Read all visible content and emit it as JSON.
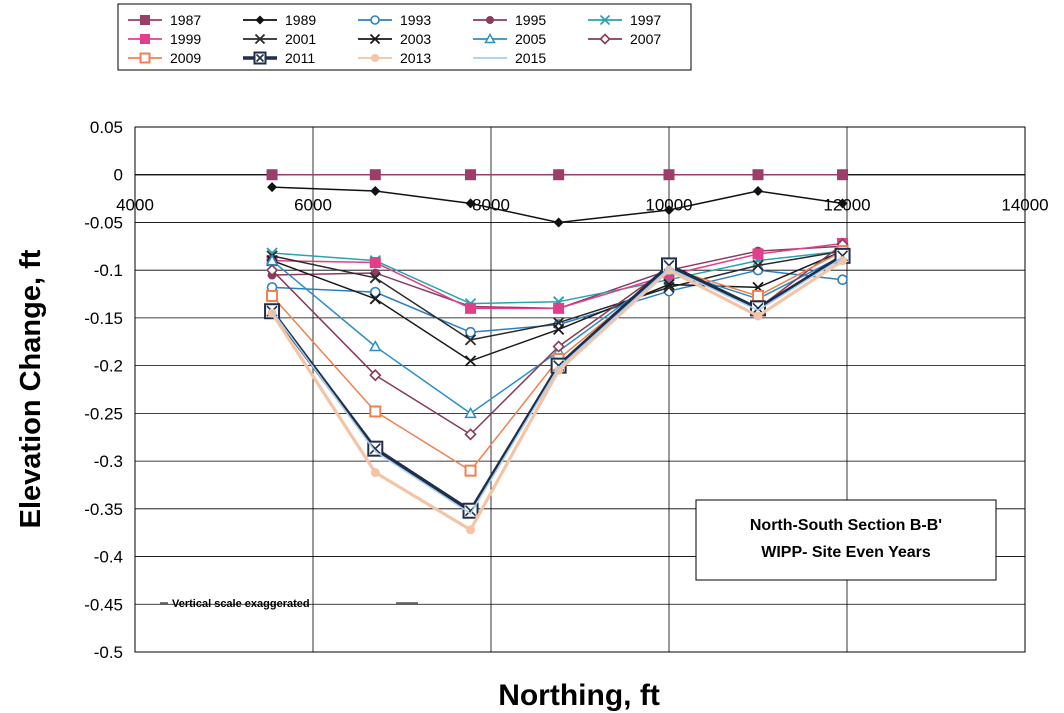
{
  "chart_data": {
    "type": "line",
    "xlabel": "Northing, ft",
    "ylabel": "Elevation Change, ft",
    "xlim": [
      4000,
      14000
    ],
    "ylim": [
      -0.5,
      0.05
    ],
    "x_ticks": [
      4000,
      6000,
      8000,
      10000,
      12000,
      14000
    ],
    "y_ticks": [
      0.05,
      0,
      -0.05,
      -0.1,
      -0.15,
      -0.2,
      -0.25,
      -0.3,
      -0.35,
      -0.4,
      -0.45,
      -0.5
    ],
    "grid": true,
    "legend_position": "top-left, above plot",
    "annotation": [
      "North-South Section B-B'",
      "WIPP- Site Even Years"
    ],
    "note": "Vertical scale exaggerated",
    "x": [
      5540,
      6700,
      7770,
      8760,
      10000,
      11000,
      11950
    ],
    "series": [
      {
        "name": "1987",
        "color": "#9c3d6a",
        "marker": "square-filled",
        "values": [
          0,
          0,
          0,
          0,
          0,
          0,
          0
        ]
      },
      {
        "name": "1989",
        "color": "#111111",
        "marker": "diamond-filled",
        "values": [
          -0.013,
          -0.017,
          -0.03,
          -0.05,
          -0.037,
          -0.017,
          -0.03
        ]
      },
      {
        "name": "1993",
        "color": "#2e7fc0",
        "marker": "circle-open",
        "values": [
          -0.118,
          -0.123,
          -0.165,
          -0.157,
          -0.122,
          -0.1,
          -0.11
        ]
      },
      {
        "name": "1995",
        "color": "#8b3a62",
        "marker": "circle-filled",
        "values": [
          -0.105,
          -0.103,
          -0.138,
          -0.14,
          -0.1,
          -0.08,
          -0.075
        ]
      },
      {
        "name": "1997",
        "color": "#2aa3b0",
        "marker": "x",
        "values": [
          -0.082,
          -0.09,
          -0.135,
          -0.133,
          -0.11,
          -0.09,
          -0.08
        ]
      },
      {
        "name": "1999",
        "color": "#e0408a",
        "marker": "square-filled",
        "values": [
          -0.09,
          -0.092,
          -0.14,
          -0.14,
          -0.105,
          -0.083,
          -0.072
        ]
      },
      {
        "name": "2001",
        "color": "#2a2a2a",
        "marker": "x",
        "values": [
          -0.085,
          -0.108,
          -0.173,
          -0.155,
          -0.118,
          -0.095,
          -0.08
        ]
      },
      {
        "name": "2003",
        "color": "#1a1a1a",
        "marker": "x",
        "values": [
          -0.09,
          -0.13,
          -0.195,
          -0.162,
          -0.115,
          -0.118,
          -0.08
        ]
      },
      {
        "name": "2005",
        "color": "#2a8fc8",
        "marker": "triangle-open",
        "values": [
          -0.09,
          -0.18,
          -0.25,
          -0.185,
          -0.1,
          -0.13,
          -0.085
        ]
      },
      {
        "name": "2007",
        "color": "#8a3a55",
        "marker": "diamond-open",
        "values": [
          -0.1,
          -0.21,
          -0.272,
          -0.18,
          -0.097,
          -0.14,
          -0.073
        ]
      },
      {
        "name": "2009",
        "color": "#f08050",
        "marker": "square-open",
        "values": [
          -0.127,
          -0.248,
          -0.31,
          -0.193,
          -0.098,
          -0.127,
          -0.08
        ]
      },
      {
        "name": "2011",
        "color": "#1f2f4a",
        "marker": "square-x",
        "values": [
          -0.143,
          -0.287,
          -0.352,
          -0.2,
          -0.095,
          -0.14,
          -0.085
        ]
      },
      {
        "name": "2013",
        "color": "#f5c3a6",
        "marker": "circle-filled",
        "values": [
          -0.145,
          -0.312,
          -0.372,
          -0.205,
          -0.1,
          -0.148,
          -0.09
        ]
      },
      {
        "name": "2015",
        "color": "#a9cfee",
        "marker": "none",
        "values": [
          -0.143,
          -0.29,
          -0.355,
          -0.202,
          -0.098,
          -0.142,
          -0.087
        ]
      }
    ]
  }
}
